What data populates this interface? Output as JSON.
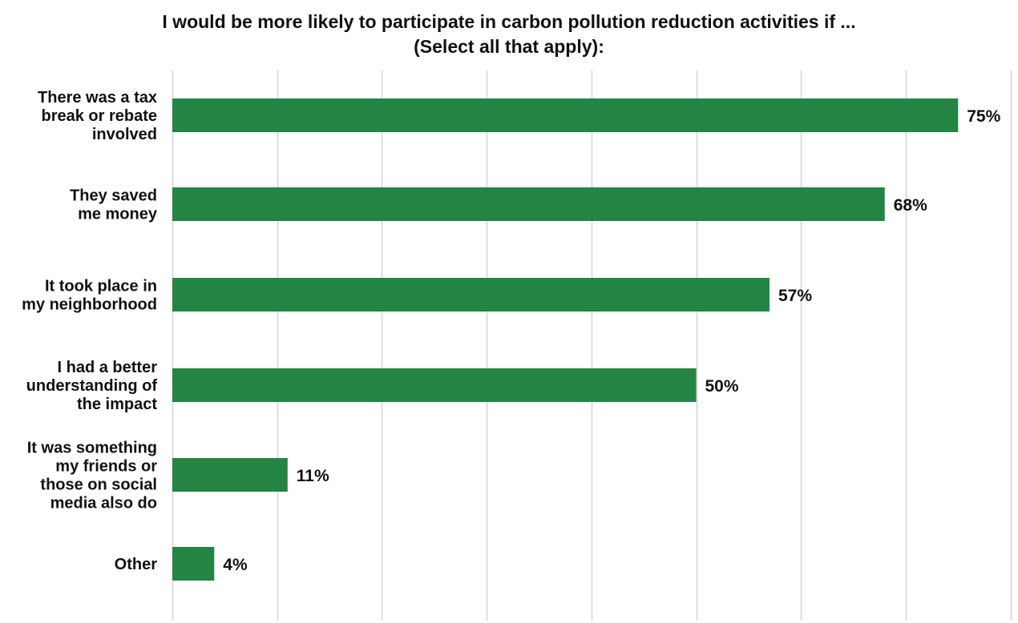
{
  "chart_data": {
    "type": "bar",
    "orientation": "horizontal",
    "title_lines": [
      "I would be more likely to participate in carbon pollution reduction activities if ...",
      "(Select all that apply):"
    ],
    "categories": [
      [
        "There was a tax",
        "break or rebate",
        "involved"
      ],
      [
        "They saved",
        "me money"
      ],
      [
        "It took place in",
        "my neighborhood"
      ],
      [
        "I had a better",
        "understanding of",
        "the impact"
      ],
      [
        "It was something",
        "my friends or",
        "those on social",
        "media also do"
      ],
      [
        "Other"
      ]
    ],
    "values": [
      75,
      68,
      57,
      50,
      11,
      4
    ],
    "value_labels": [
      "75%",
      "68%",
      "57%",
      "50%",
      "11%",
      "4%"
    ],
    "xlim": [
      0,
      80
    ],
    "grid": true,
    "grid_step": 10,
    "bar_color": "#238443",
    "grid_color": "#d4d4d4"
  }
}
